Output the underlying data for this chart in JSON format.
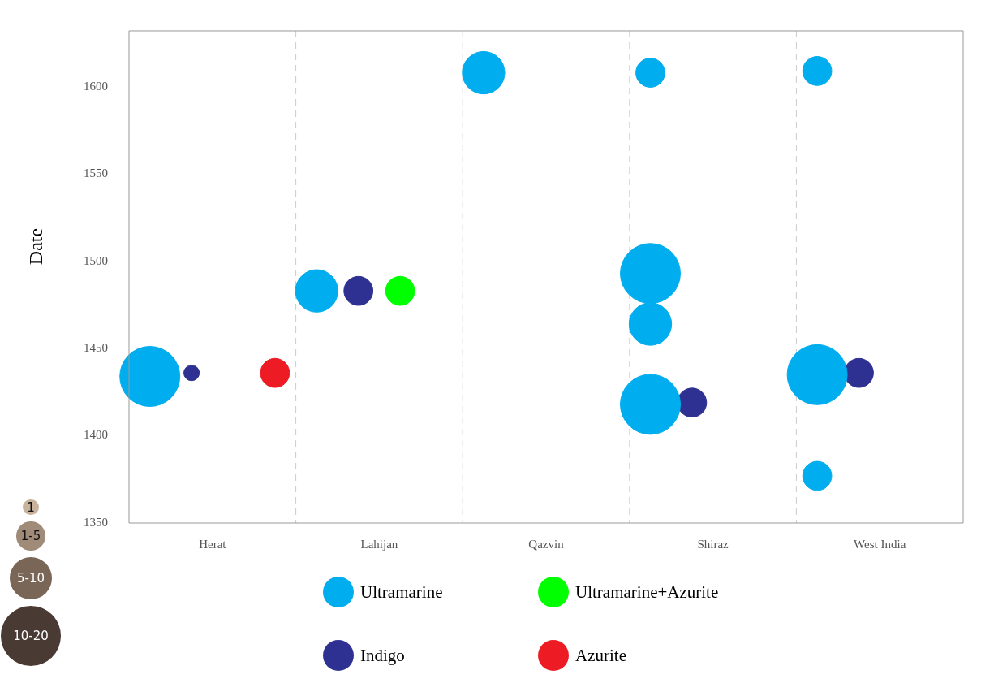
{
  "chart_data": {
    "type": "bubble",
    "ylabel": "Date",
    "categories": [
      "Herat",
      "Lahijan",
      "Qazvin",
      "Shiraz",
      "West India"
    ],
    "ylim": [
      1350,
      1632
    ],
    "yticks": [
      1350,
      1400,
      1450,
      1500,
      1550,
      1600
    ],
    "size_legend": [
      {
        "value": 1,
        "label": "1"
      },
      {
        "value": 3.5,
        "label": "1-5"
      },
      {
        "value": 7.5,
        "label": "5-10"
      },
      {
        "value": 15,
        "label": "10-20"
      }
    ],
    "grid": "x",
    "legend": "bottom",
    "series": [
      {
        "name": "Ultramarine",
        "color": "#00aeef",
        "x": [
          "Herat",
          "Lahijan",
          "Qazvin",
          "Shiraz",
          "Shiraz",
          "Shiraz",
          "Shiraz",
          "West India",
          "West India",
          "West India"
        ],
        "values": [
          1434,
          1483,
          1608,
          1608,
          1493,
          1464,
          1418,
          1609,
          1435,
          1377
        ],
        "sizes": [
          15,
          7.5,
          7.5,
          3.5,
          15,
          7.5,
          15,
          3.5,
          15,
          3.5
        ]
      },
      {
        "name": "Indigo",
        "color": "#2e3192",
        "x": [
          "Herat",
          "Lahijan",
          "Shiraz",
          "West India"
        ],
        "values": [
          1436,
          1483,
          1419,
          1436
        ],
        "sizes": [
          1,
          3.5,
          3.5,
          3.5
        ]
      },
      {
        "name": "Ultramarine+Azurite",
        "color": "#00ff00",
        "x": [
          "Lahijan"
        ],
        "values": [
          1483
        ],
        "sizes": [
          3.5
        ]
      },
      {
        "name": "Azurite",
        "color": "#ed1c24",
        "x": [
          "Herat"
        ],
        "values": [
          1436
        ],
        "sizes": [
          3.5
        ]
      }
    ]
  }
}
